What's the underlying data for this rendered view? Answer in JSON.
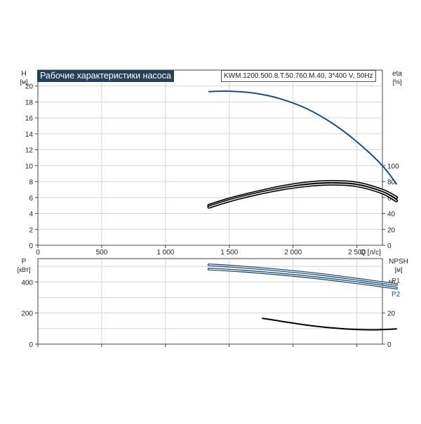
{
  "chart_data": [
    {
      "type": "line",
      "title": "Рабочие характеристики насоса",
      "subtitle": "KWM.1200.500.8.T.50.760.M.40, 3*400 V, 50Hz",
      "xlabel": "Q [л/с]",
      "xlim": [
        0,
        2700
      ],
      "x_ticks": [
        0,
        500,
        1000,
        1500,
        2000,
        2500
      ],
      "x_tick_labels": [
        "0",
        "500",
        "1 000",
        "1 500",
        "2 000",
        "2 500"
      ],
      "ylabel_left": "H",
      "ylabel_left_unit": "[м]",
      "ylim_left": [
        0,
        22
      ],
      "y_ticks_left": [
        0,
        2,
        4,
        6,
        8,
        10,
        12,
        14,
        16,
        18,
        20
      ],
      "ylabel_right": "eta",
      "ylabel_right_unit": "[%]",
      "y_ticks_right": [
        0,
        20,
        40,
        60,
        80,
        100
      ],
      "grid": true,
      "series": [
        {
          "axis": "left",
          "color": "#1f4e79",
          "x": [
            1340,
            1500,
            1700,
            1900,
            2100,
            2300,
            2500,
            2700,
            2810
          ],
          "y": [
            19.3,
            19.35,
            19.1,
            18.4,
            17.2,
            15.4,
            13.0,
            10.0,
            7.7
          ]
        },
        {
          "axis": "right",
          "color": "#000000",
          "x": [
            1340,
            1500,
            1700,
            1900,
            2100,
            2300,
            2500,
            2700,
            2810
          ],
          "y": [
            50,
            58,
            66,
            73,
            78,
            80,
            78,
            69,
            60
          ]
        },
        {
          "axis": "right",
          "color": "#000000",
          "x": [
            1340,
            1500,
            1700,
            1900,
            2100,
            2300,
            2500,
            2700,
            2810
          ],
          "y": [
            48,
            56,
            64,
            70.5,
            75,
            77,
            75,
            66,
            56
          ]
        }
      ]
    },
    {
      "type": "line",
      "xlim": [
        0,
        2700
      ],
      "x_ticks": [
        0,
        500,
        1000,
        1500,
        2000,
        2500
      ],
      "ylabel_left": "P",
      "ylabel_left_unit": "[кВт]",
      "ylim_left": [
        0,
        550
      ],
      "y_ticks_left": [
        0,
        200,
        400
      ],
      "ylabel_right": "NPSH",
      "ylabel_right_unit": "[м]",
      "ylim_right": [
        0,
        55
      ],
      "y_ticks_right": [
        0,
        20,
        40
      ],
      "grid": true,
      "series": [
        {
          "name": "P1",
          "axis": "left",
          "color": "#1f4e79",
          "x": [
            1340,
            1600,
            1900,
            2200,
            2500,
            2810
          ],
          "y": [
            510,
            496,
            475,
            450,
            418,
            383
          ]
        },
        {
          "name": "P2",
          "axis": "left",
          "color": "#1f4e79",
          "x": [
            1340,
            1600,
            1900,
            2200,
            2500,
            2810
          ],
          "y": [
            483,
            470,
            450,
            425,
            395,
            360
          ]
        },
        {
          "axis": "right",
          "color": "#000000",
          "x": [
            1760,
            1900,
            2100,
            2300,
            2500,
            2650,
            2810
          ],
          "y": [
            16.6,
            14.8,
            12.3,
            10.5,
            9.4,
            9.2,
            9.8
          ]
        }
      ]
    }
  ]
}
